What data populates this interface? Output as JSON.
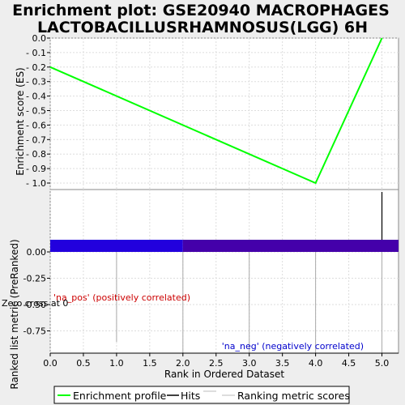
{
  "chart_data": {
    "type": "line",
    "title_lines": [
      "Enrichment plot: GSE20940 MACROPHAGES",
      "LACTOBACILLUSRHAMNOSUS(LGG) 6H"
    ],
    "xlabel": "Rank in Ordered Dataset",
    "es_ylabel": "Enrichment score (ES)",
    "metric_ylabel": "Ranked list metric (PreRanked)",
    "xlim": [
      0,
      5.25
    ],
    "x_ticks": [
      "0.0",
      "0.5",
      "1.0",
      "1.5",
      "2.0",
      "2.5",
      "3.0",
      "3.5",
      "4.0",
      "4.5",
      "5.0"
    ],
    "x_tick_values": [
      0,
      0.5,
      1,
      1.5,
      2,
      2.5,
      3,
      3.5,
      4,
      4.5,
      5
    ],
    "es_ylim": [
      -1.05,
      0
    ],
    "es_ticks": [
      "0.0",
      "- 0.1",
      "- 0.2",
      "- 0.3",
      "- 0.4",
      "- 0.5",
      "- 0.6",
      "- 0.7",
      "- 0.8",
      "- 0.9",
      "- 1.0"
    ],
    "es_tick_values": [
      0,
      -0.1,
      -0.2,
      -0.3,
      -0.4,
      -0.5,
      -0.6,
      -0.7,
      -0.8,
      -0.9,
      -1.0
    ],
    "es_series": {
      "name": "Enrichment profile",
      "color": "#00ff00",
      "x": [
        0,
        4,
        5
      ],
      "y": [
        -0.2,
        -1.0,
        0.0
      ]
    },
    "hits": {
      "color": "#000000",
      "x": [
        5
      ]
    },
    "rank_bar": {
      "segments": [
        {
          "from": 0,
          "to": 2,
          "color": "#2200dd"
        },
        {
          "from": 2,
          "to": 5.25,
          "color": "#4400aa"
        }
      ]
    },
    "metric_ylim": [
      -0.95,
      0.12
    ],
    "metric_ticks": [
      "0.00",
      "-0.25",
      "-0.50",
      "-0.75"
    ],
    "metric_tick_values": [
      0,
      -0.25,
      -0.5,
      -0.75
    ],
    "metric_lines": {
      "color": "#aaaaaa",
      "x": [
        1,
        2,
        3,
        4,
        5
      ]
    },
    "annotations": {
      "pos": {
        "text": "'na_pos' (positively correlated)",
        "color": "#cc0000"
      },
      "neg": {
        "text": "'na_neg' (negatively correlated)",
        "color": "#0000cc"
      },
      "zero": {
        "text": "Zero cross at 0",
        "color": "#000000"
      }
    },
    "legend": [
      {
        "label": "Enrichment profile",
        "color": "#00ff00"
      },
      {
        "label": "Hits",
        "color": "#000000"
      },
      {
        "label": "Ranking metric scores",
        "color": "#bbbbbb"
      }
    ],
    "grid": true
  }
}
